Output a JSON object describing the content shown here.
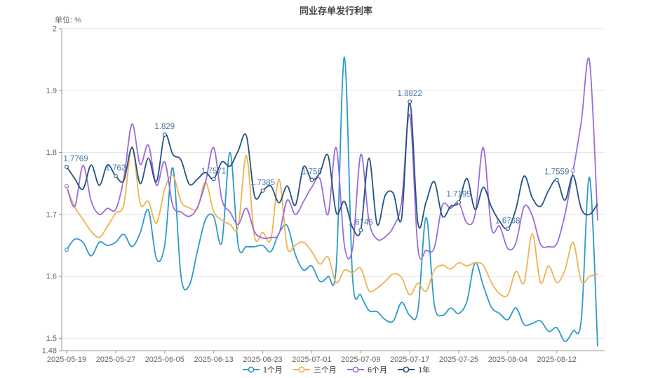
{
  "chart_data": {
    "type": "line",
    "title": "同业存单发行利率",
    "unit_label": "单位: %",
    "legend_position": "bottom-center",
    "grid": "horizontal-only",
    "x_tick_labels": [
      "2025-05-19",
      "2025-05-27",
      "2025-06-05",
      "2025-06-13",
      "2025-06-23",
      "2025-07-01",
      "2025-07-09",
      "2025-07-17",
      "2025-07-25",
      "2025-08-04",
      "2025-08-12"
    ],
    "tick_indices": [
      0,
      6,
      12,
      18,
      24,
      30,
      36,
      42,
      48,
      54,
      60
    ],
    "n_points": 66,
    "y_axis": {
      "min": 1.48,
      "max": 2,
      "ticks": [
        {
          "v": 2,
          "label": "2"
        },
        {
          "v": 1.9,
          "label": "1.9"
        },
        {
          "v": 1.8,
          "label": "1.8"
        },
        {
          "v": 1.7,
          "label": "1.7"
        },
        {
          "v": 1.6,
          "label": "1.6"
        },
        {
          "v": 1.5,
          "label": "1.5"
        },
        {
          "v": 1.48,
          "label": "1.48"
        }
      ],
      "gridline_values": [
        2,
        1.9,
        1.8,
        1.7,
        1.6,
        1.5
      ]
    },
    "label_color": "#4a76a4",
    "axis_text_color": "#666666",
    "axis_line_color": "#999999",
    "gridline_color": "#e6e6e6",
    "series": [
      {
        "name": "1个月",
        "color": "#2d9aca",
        "marker_indices": [
          0
        ],
        "values": [
          1.643,
          1.66,
          1.655,
          1.633,
          1.655,
          1.65,
          1.655,
          1.668,
          1.648,
          1.67,
          1.707,
          1.628,
          1.65,
          1.775,
          1.6,
          1.585,
          1.64,
          1.692,
          1.697,
          1.655,
          1.8,
          1.65,
          1.648,
          1.648,
          1.65,
          1.64,
          1.67,
          1.682,
          1.635,
          1.61,
          1.617,
          1.592,
          1.6,
          1.615,
          1.954,
          1.598,
          1.57,
          1.545,
          1.543,
          1.53,
          1.528,
          1.558,
          1.537,
          1.545,
          1.695,
          1.555,
          1.537,
          1.549,
          1.54,
          1.56,
          1.622,
          1.585,
          1.55,
          1.54,
          1.53,
          1.549,
          1.522,
          1.524,
          1.528,
          1.511,
          1.517,
          1.495,
          1.512,
          1.53,
          1.76,
          1.487
        ]
      },
      {
        "name": "三个月",
        "color": "#efb34f",
        "marker_indices": [
          0
        ],
        "values": [
          1.744,
          1.712,
          1.692,
          1.673,
          1.663,
          1.681,
          1.702,
          1.716,
          1.81,
          1.718,
          1.721,
          1.686,
          1.741,
          1.763,
          1.721,
          1.711,
          1.71,
          1.752,
          1.705,
          1.691,
          1.684,
          1.681,
          1.795,
          1.664,
          1.671,
          1.66,
          1.757,
          1.647,
          1.651,
          1.655,
          1.64,
          1.62,
          1.631,
          1.59,
          1.61,
          1.606,
          1.613,
          1.577,
          1.581,
          1.592,
          1.604,
          1.598,
          1.57,
          1.589,
          1.576,
          1.61,
          1.618,
          1.612,
          1.622,
          1.617,
          1.622,
          1.618,
          1.59,
          1.572,
          1.57,
          1.608,
          1.59,
          1.669,
          1.59,
          1.617,
          1.59,
          1.61,
          1.655,
          1.592,
          1.6,
          1.604
        ]
      },
      {
        "name": "6个月",
        "color": "#9a6cde",
        "marker_indices": [
          0,
          62
        ],
        "values": [
          1.746,
          1.713,
          1.779,
          1.722,
          1.7,
          1.71,
          1.708,
          1.758,
          1.846,
          1.781,
          1.812,
          1.747,
          1.785,
          1.714,
          1.704,
          1.697,
          1.711,
          1.752,
          1.808,
          1.724,
          1.704,
          1.684,
          1.71,
          1.672,
          1.662,
          1.663,
          1.669,
          1.723,
          1.7,
          1.721,
          1.744,
          1.758,
          1.7,
          1.808,
          1.65,
          1.645,
          1.797,
          1.69,
          1.66,
          1.664,
          1.68,
          1.72,
          1.861,
          1.645,
          1.642,
          1.646,
          1.715,
          1.71,
          1.719,
          1.686,
          1.7,
          1.808,
          1.678,
          1.681,
          1.645,
          1.654,
          1.713,
          1.698,
          1.652,
          1.648,
          1.653,
          1.7,
          1.771,
          1.85,
          1.948,
          1.69
        ]
      },
      {
        "name": "1年",
        "color": "#24527f",
        "marker_indices": [
          0,
          6,
          12,
          18,
          24,
          30,
          36,
          42,
          48,
          54,
          60
        ],
        "point_labels": [
          {
            "i": 0,
            "text": "1.7769"
          },
          {
            "i": 6,
            "text": "1.762"
          },
          {
            "i": 12,
            "text": "1.829"
          },
          {
            "i": 18,
            "text": "1.7571"
          },
          {
            "i": 24,
            "text": "1.7385"
          },
          {
            "i": 30,
            "text": "1.756"
          },
          {
            "i": 36,
            "text": "1.6745"
          },
          {
            "i": 42,
            "text": "1.8822"
          },
          {
            "i": 48,
            "text": "1.7195"
          },
          {
            "i": 54,
            "text": "1.6768"
          },
          {
            "i": 60,
            "text": "1.7559"
          }
        ],
        "values": [
          1.7769,
          1.758,
          1.741,
          1.78,
          1.747,
          1.78,
          1.762,
          1.755,
          1.808,
          1.75,
          1.791,
          1.753,
          1.829,
          1.797,
          1.788,
          1.749,
          1.757,
          1.768,
          1.7571,
          1.785,
          1.778,
          1.803,
          1.827,
          1.73,
          1.7385,
          1.746,
          1.719,
          1.746,
          1.715,
          1.777,
          1.756,
          1.767,
          1.795,
          1.703,
          1.721,
          1.679,
          1.6745,
          1.791,
          1.684,
          1.731,
          1.734,
          1.694,
          1.8822,
          1.686,
          1.72,
          1.753,
          1.697,
          1.713,
          1.7195,
          1.758,
          1.708,
          1.744,
          1.712,
          1.689,
          1.6768,
          1.709,
          1.762,
          1.727,
          1.713,
          1.739,
          1.7559,
          1.723,
          1.763,
          1.709,
          1.7,
          1.717
        ]
      }
    ]
  }
}
